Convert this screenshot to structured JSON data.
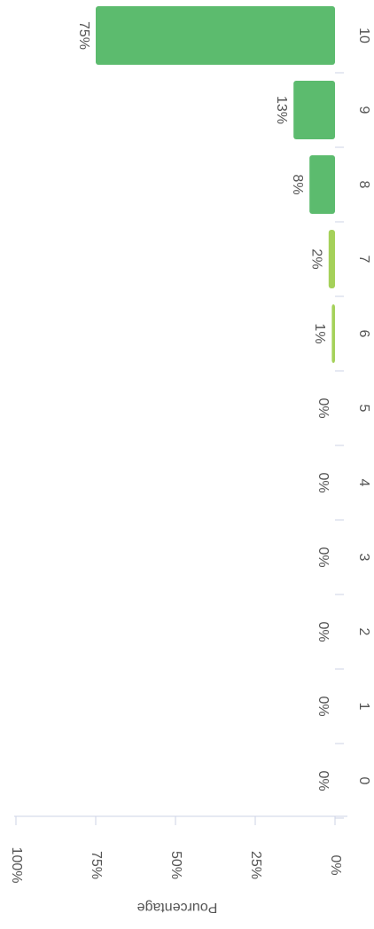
{
  "chart_data": {
    "type": "bar",
    "orientation": "horizontal",
    "categories": [
      "0",
      "1",
      "2",
      "3",
      "4",
      "5",
      "6",
      "7",
      "8",
      "9",
      "10"
    ],
    "values": [
      0,
      0,
      0,
      0,
      0,
      0,
      1,
      2,
      8,
      13,
      75
    ],
    "value_labels": [
      "0%",
      "0%",
      "0%",
      "0%",
      "0%",
      "0%",
      "1%",
      "2%",
      "8%",
      "13%",
      "75%"
    ],
    "colors": [
      "#e8604c",
      "#e8604c",
      "#e8604c",
      "#f0a04b",
      "#f0a04b",
      "#f0a04b",
      "#a5d15a",
      "#a5d15a",
      "#5cbb6e",
      "#5cbb6e",
      "#5cbb6e"
    ],
    "axis_label": "Pourcentage",
    "xlim": [
      0,
      100
    ],
    "xticks": [
      {
        "value": 0,
        "label": "0%"
      },
      {
        "value": 25,
        "label": "25%"
      },
      {
        "value": 50,
        "label": "50%"
      },
      {
        "value": 75,
        "label": "75%"
      },
      {
        "value": 100,
        "label": "100%"
      }
    ]
  }
}
